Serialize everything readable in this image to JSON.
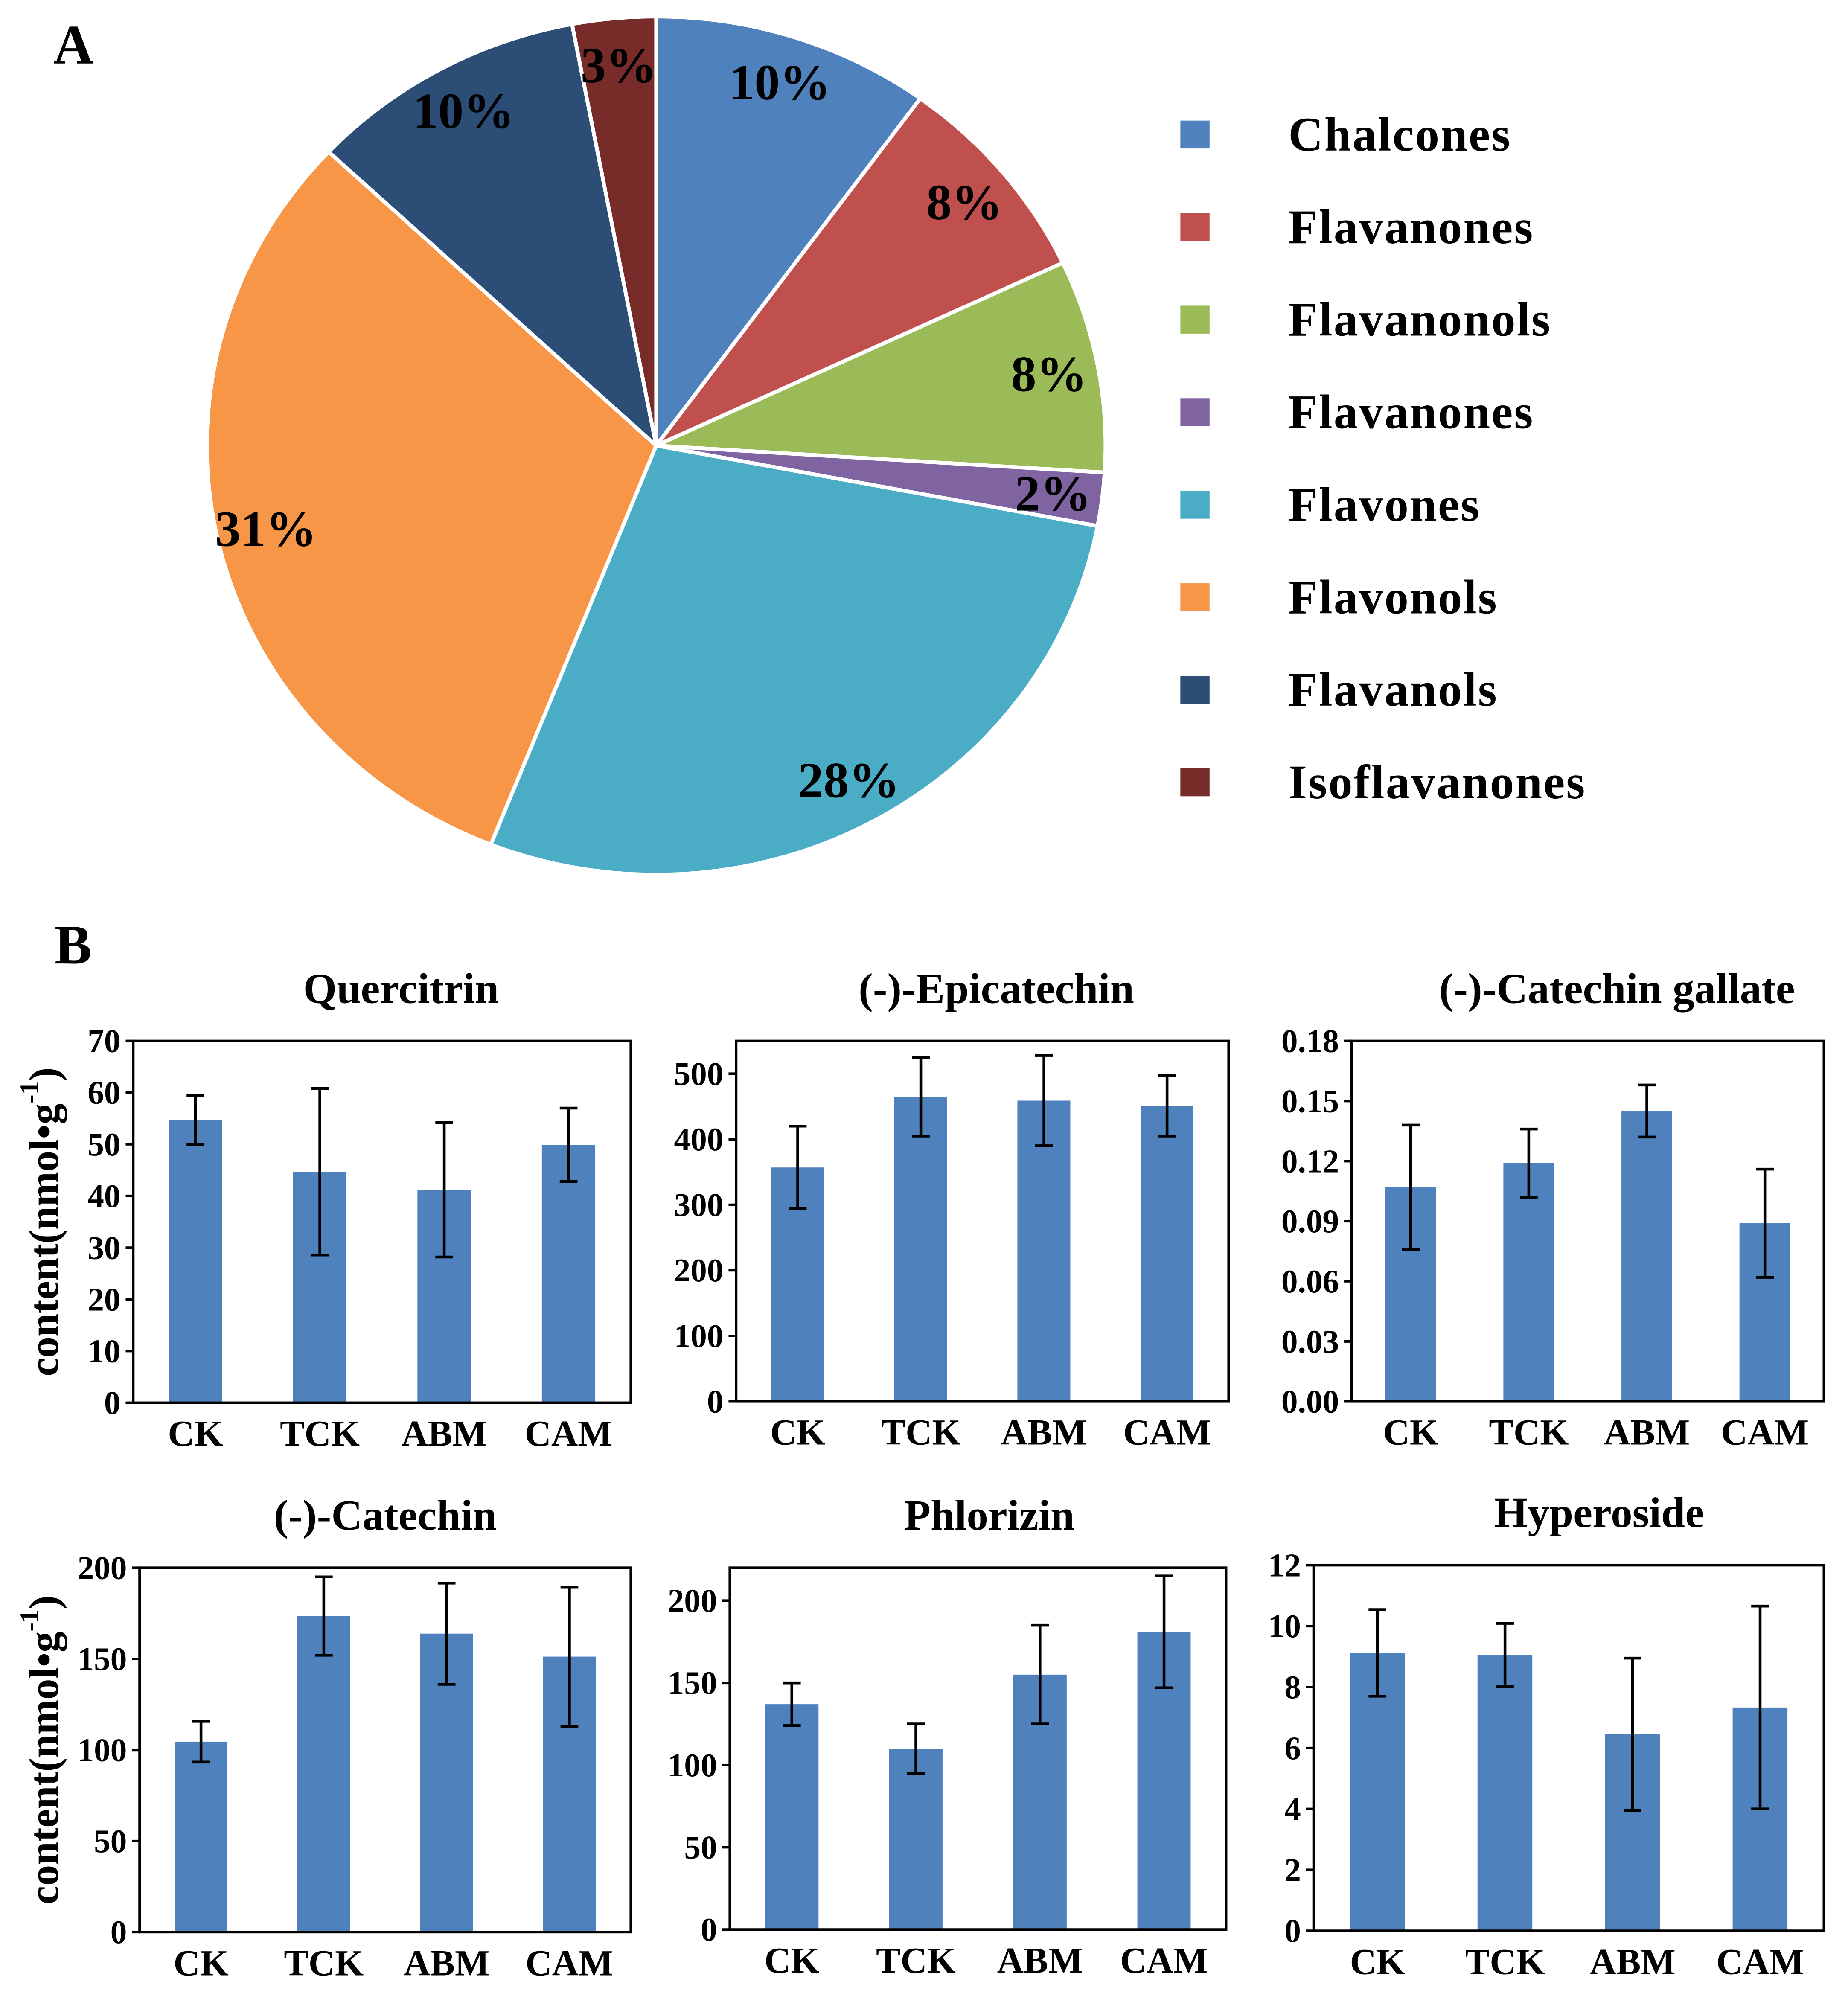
{
  "panels": {
    "a": "A",
    "b": "B"
  },
  "chart_data": [
    {
      "type": "pie",
      "labels": [
        "Chalcones",
        "Flavanones",
        "Flavanonols",
        "Flavanones",
        "Flavones",
        "Flavonols",
        "Flavanols",
        "Isoflavanones"
      ],
      "values": [
        10,
        8,
        8,
        2,
        28,
        31,
        10,
        3
      ],
      "data_labels": [
        "10%",
        "8%",
        "8%",
        "2%",
        "28%",
        "31%",
        "10%",
        "3%"
      ],
      "colors": [
        "#4f81bd",
        "#c0504d",
        "#9bbb59",
        "#8064a2",
        "#4bacc6",
        "#f79646",
        "#2c4d75",
        "#772c2a"
      ],
      "legend_position": "right"
    },
    {
      "type": "bar",
      "title": "Quercitrin",
      "categories": [
        "CK",
        "TCK",
        "ABM",
        "CAM"
      ],
      "values": [
        54.7,
        44.7,
        41.2,
        49.9
      ],
      "errors": [
        4.8,
        16.1,
        13.0,
        7.1
      ],
      "ylabel": {
        "main": "content(nmol•g",
        "sup": "-1",
        "end": ")"
      },
      "ylim": [
        0,
        70
      ],
      "yticks": [
        0,
        10,
        20,
        30,
        40,
        50,
        60,
        70
      ],
      "ytick_labels": [
        "0",
        "10",
        "20",
        "30",
        "40",
        "50",
        "60",
        "70"
      ],
      "color": "#4f81bd"
    },
    {
      "type": "bar",
      "title": "(-)-Epicatechin",
      "categories": [
        "CK",
        "TCK",
        "ABM",
        "CAM"
      ],
      "values": [
        357,
        465,
        459,
        451
      ],
      "errors": [
        63,
        60,
        69,
        46
      ],
      "ylim": [
        0,
        550
      ],
      "yticks": [
        0,
        100,
        200,
        300,
        400,
        500
      ],
      "ytick_labels": [
        "0",
        "100",
        "200",
        "300",
        "400",
        "500"
      ],
      "color": "#4f81bd"
    },
    {
      "type": "bar",
      "title": "(-)-Catechin gallate",
      "categories": [
        "CK",
        "TCK",
        "ABM",
        "CAM"
      ],
      "values": [
        0.107,
        0.119,
        0.145,
        0.089
      ],
      "errors": [
        0.031,
        0.017,
        0.013,
        0.027
      ],
      "ylim": [
        0,
        0.18
      ],
      "yticks": [
        0,
        0.03,
        0.06,
        0.09,
        0.12,
        0.15,
        0.18
      ],
      "ytick_labels": [
        "0.00",
        "0.03",
        "0.06",
        "0.09",
        "0.12",
        "0.15",
        "0.18"
      ],
      "color": "#4f81bd"
    },
    {
      "type": "bar",
      "title": "(-)-Catechin",
      "categories": [
        "CK",
        "TCK",
        "ABM",
        "CAM"
      ],
      "values": [
        104.5,
        173.5,
        163.8,
        151.2
      ],
      "errors": [
        11.2,
        21.5,
        27.8,
        38.3
      ],
      "ylabel": {
        "main": "content(nmol•g",
        "sup": "-1",
        "end": ")"
      },
      "ylim": [
        0,
        200
      ],
      "yticks": [
        0,
        50,
        100,
        150,
        200
      ],
      "ytick_labels": [
        "0",
        "50",
        "100",
        "150",
        "200"
      ],
      "color": "#4f81bd"
    },
    {
      "type": "bar",
      "title": "Phlorizin",
      "categories": [
        "CK",
        "TCK",
        "ABM",
        "CAM"
      ],
      "values": [
        137,
        110,
        155,
        181
      ],
      "errors": [
        13,
        15,
        30,
        34
      ],
      "ylim": [
        0,
        220
      ],
      "yticks": [
        0,
        50,
        100,
        150,
        200
      ],
      "ytick_labels": [
        "0",
        "50",
        "100",
        "150",
        "200"
      ],
      "color": "#4f81bd"
    },
    {
      "type": "bar",
      "title": "Hyperoside",
      "categories": [
        "CK",
        "TCK",
        "ABM",
        "CAM"
      ],
      "values": [
        9.12,
        9.05,
        6.45,
        7.33
      ],
      "errors": [
        1.42,
        1.04,
        2.5,
        3.33
      ],
      "ylim": [
        0,
        12
      ],
      "yticks": [
        0,
        2,
        4,
        6,
        8,
        10,
        12
      ],
      "ytick_labels": [
        "0",
        "2",
        "4",
        "6",
        "8",
        "10",
        "12"
      ],
      "color": "#4f81bd"
    }
  ]
}
